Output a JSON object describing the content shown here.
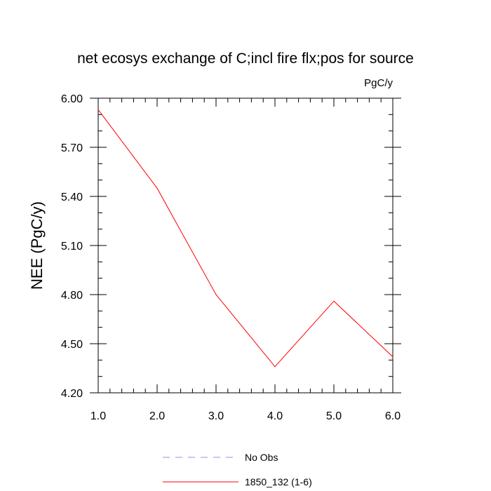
{
  "chart_data": {
    "type": "line",
    "title": "net ecosys exchange of C;incl fire flx;pos for source",
    "units_label": "PgC/y",
    "xlabel": "",
    "ylabel": "NEE  (PgC/y)",
    "xlim": [
      1.0,
      6.0
    ],
    "ylim": [
      4.2,
      6.0
    ],
    "x_ticks": [
      "1.0",
      "2.0",
      "3.0",
      "4.0",
      "5.0",
      "6.0"
    ],
    "y_ticks": [
      "4.20",
      "4.50",
      "4.80",
      "5.10",
      "5.40",
      "5.70",
      "6.00"
    ],
    "grid": false,
    "legend_position": "bottom",
    "series": [
      {
        "name": "1850_132 (1-6)",
        "color": "#ff0000",
        "style": "solid",
        "x": [
          1,
          2,
          3,
          4,
          5,
          6
        ],
        "y": [
          5.93,
          5.45,
          4.8,
          4.36,
          4.76,
          4.42
        ]
      }
    ],
    "legend": [
      {
        "label": "No Obs",
        "color": "#8c8cff",
        "style": "dashed"
      },
      {
        "label": "1850_132 (1-6)",
        "color": "#ff0000",
        "style": "solid"
      }
    ]
  }
}
